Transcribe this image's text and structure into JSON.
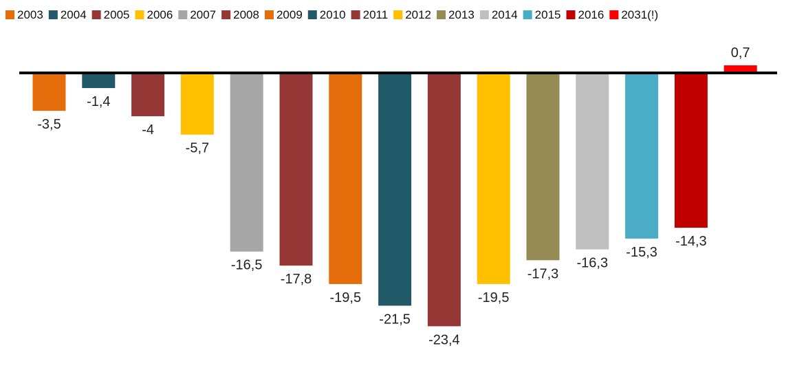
{
  "chart_data": {
    "type": "bar",
    "title": "",
    "xlabel": "",
    "ylabel": "",
    "ylim": [
      -24.5,
      1.0
    ],
    "grid": false,
    "legend_position": "top",
    "series": [
      {
        "name": "2003",
        "value": -3.5,
        "label": "-3,5",
        "color": "#E46C0A"
      },
      {
        "name": "2004",
        "value": -1.4,
        "label": "-1,4",
        "color": "#215968"
      },
      {
        "name": "2005",
        "value": -4,
        "label": "-4",
        "color": "#953735"
      },
      {
        "name": "2006",
        "value": -5.7,
        "label": "-5,7",
        "color": "#FFC000"
      },
      {
        "name": "2007",
        "value": -16.5,
        "label": "-16,5",
        "color": "#A6A6A6"
      },
      {
        "name": "2008",
        "value": -17.8,
        "label": "-17,8",
        "color": "#953735"
      },
      {
        "name": "2009",
        "value": -19.5,
        "label": "-19,5",
        "color": "#E46C0A"
      },
      {
        "name": "2010",
        "value": -21.5,
        "label": "-21,5",
        "color": "#215968"
      },
      {
        "name": "2011",
        "value": -23.4,
        "label": "-23,4",
        "color": "#953735"
      },
      {
        "name": "2012",
        "value": -19.5,
        "label": "-19,5",
        "color": "#FFC000"
      },
      {
        "name": "2013",
        "value": -17.3,
        "label": "-17,3",
        "color": "#948A54"
      },
      {
        "name": "2014",
        "value": -16.3,
        "label": "-16,3",
        "color": "#BFBFBF"
      },
      {
        "name": "2015",
        "value": -15.3,
        "label": "-15,3",
        "color": "#4BACC6"
      },
      {
        "name": "2016",
        "value": -14.3,
        "label": "-14,3",
        "color": "#C00000"
      },
      {
        "name": "2031(!)",
        "value": 0.7,
        "label": "0,7",
        "color": "#FF0000"
      }
    ]
  }
}
